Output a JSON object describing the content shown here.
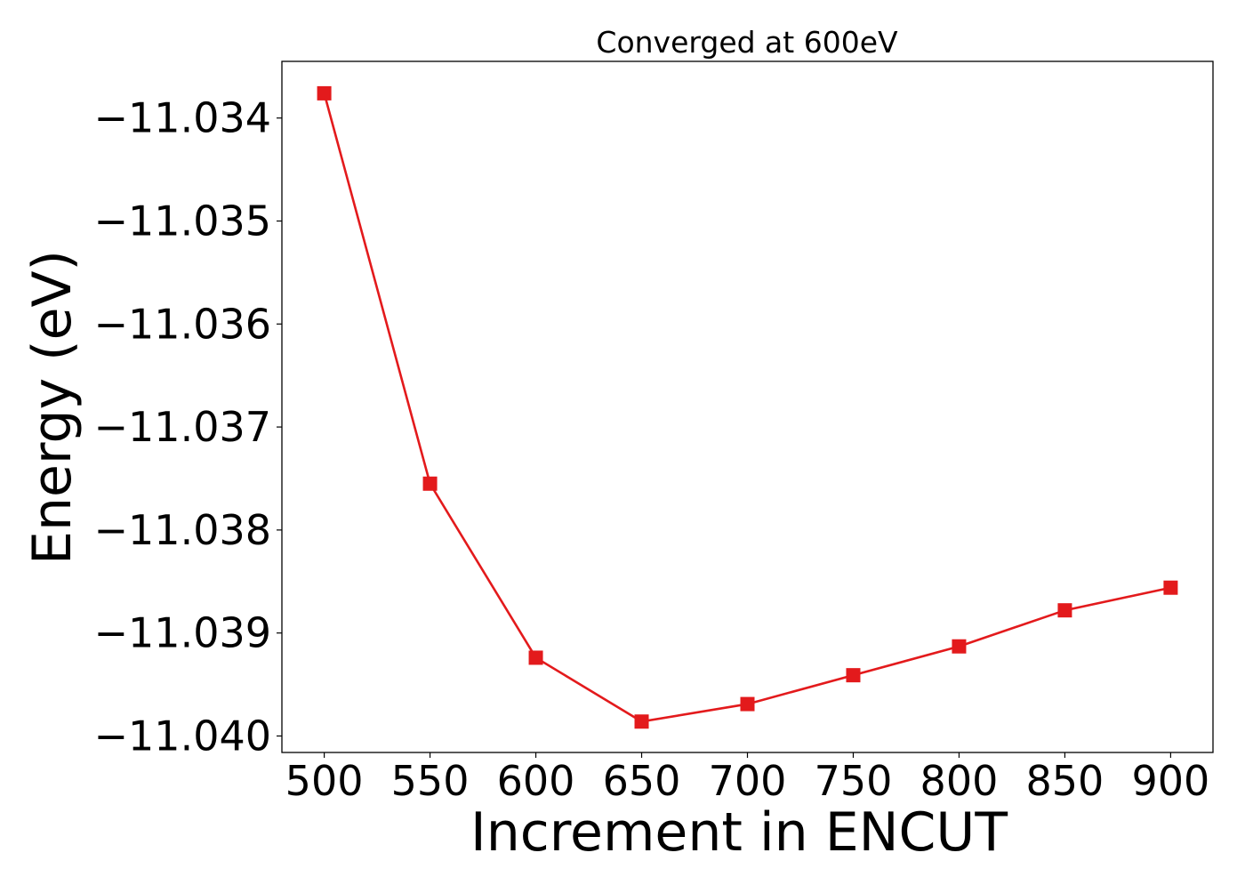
{
  "chart_data": {
    "type": "line",
    "title": "Converged at 600eV",
    "xlabel": "Increment in ENCUT",
    "ylabel": "Energy (eV)",
    "x": [
      500,
      550,
      600,
      650,
      700,
      750,
      800,
      850,
      900
    ],
    "series": [
      {
        "color": "#e31a1c",
        "marker": "square",
        "values": [
          -11.03376,
          -11.03755,
          -11.03924,
          -11.03986,
          -11.03969,
          -11.03941,
          -11.03913,
          -11.03878,
          -11.03856
        ]
      }
    ],
    "x_ticks": [
      500,
      550,
      600,
      650,
      700,
      750,
      800,
      850,
      900
    ],
    "x_tick_labels": [
      "500",
      "550",
      "600",
      "650",
      "700",
      "750",
      "800",
      "850",
      "900"
    ],
    "y_ticks": [
      -11.034,
      -11.035,
      -11.036,
      -11.037,
      -11.038,
      -11.039,
      -11.04
    ],
    "y_tick_labels": [
      "−11.034",
      "−11.035",
      "−11.036",
      "−11.037",
      "−11.038",
      "−11.039",
      "−11.040"
    ],
    "xlim": [
      480,
      920
    ],
    "ylim": [
      -11.04016,
      -11.03345
    ],
    "grid": false,
    "legend": "none"
  }
}
